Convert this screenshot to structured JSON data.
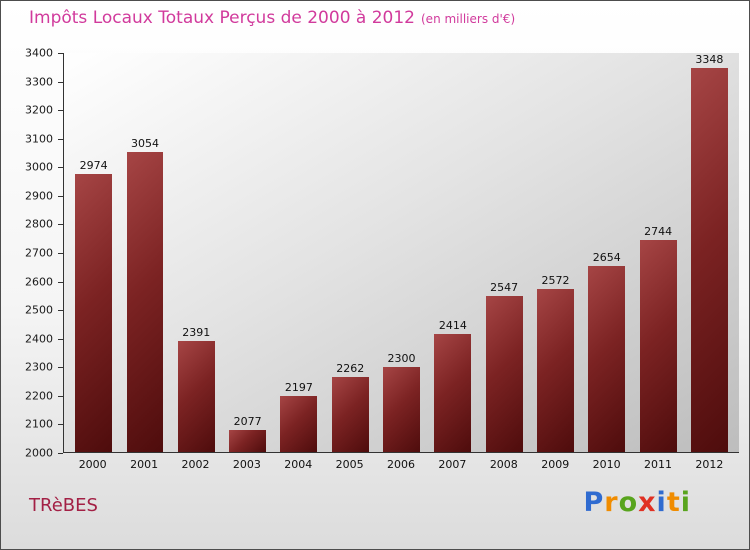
{
  "chart_data": {
    "type": "bar",
    "title": "Impôts Locaux Totaux Perçus de 2000 à 2012",
    "subtitle": "(en milliers d'€)",
    "categories": [
      "2000",
      "2001",
      "2002",
      "2003",
      "2004",
      "2005",
      "2006",
      "2007",
      "2008",
      "2009",
      "2010",
      "2011",
      "2012"
    ],
    "values": [
      2974,
      3054,
      2391,
      2077,
      2197,
      2262,
      2300,
      2414,
      2547,
      2572,
      2654,
      2744,
      3348
    ],
    "xlabel": "",
    "ylabel": "",
    "ylim": [
      2000,
      3400
    ],
    "ytick": 100,
    "grid": false,
    "legend_position": "none",
    "value_labels": true,
    "bar_color_top": "#a64545",
    "bar_color_bottom": "#4e0c0c",
    "title_color": "#d13a9c",
    "plot_background": "gray-gradient"
  },
  "footer": {
    "location": "TRèBES",
    "logo_text": "Proxiti",
    "logo_letters": [
      {
        "char": "P",
        "color": "#2f6bd0"
      },
      {
        "char": "r",
        "color": "#f08c00"
      },
      {
        "char": "o",
        "color": "#58a41d"
      },
      {
        "char": "x",
        "color": "#e03123"
      },
      {
        "char": "i",
        "color": "#2f6bd0"
      },
      {
        "char": "t",
        "color": "#f08c00"
      },
      {
        "char": "i",
        "color": "#58a41d"
      }
    ]
  }
}
